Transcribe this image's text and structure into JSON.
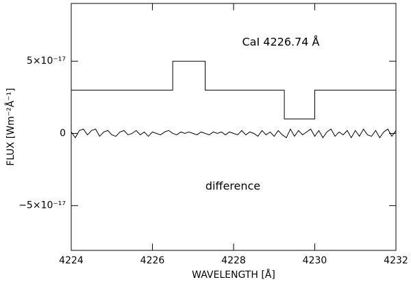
{
  "chart_data": {
    "type": "line",
    "xlabel": "WAVELENGTH [Å]",
    "ylabel": "FLUX [Wm⁻²Å⁻¹]",
    "annotations": [
      "CaI 4226.74 Å",
      "difference"
    ],
    "xlim": [
      4224,
      4232
    ],
    "xticks": [
      4224,
      4226,
      4228,
      4230,
      4232
    ],
    "ylim": [
      -8.1e-17,
      9e-17
    ],
    "yticks": [
      {
        "value": -5e-17,
        "label": "−5×10⁻¹⁷"
      },
      0,
      {
        "value": 5e-17,
        "label": "5×10⁻¹⁷"
      }
    ],
    "color": "#000000",
    "series": [
      {
        "x": [
          4224,
          4226.5,
          4226.5,
          4227.3,
          4227.3,
          4229.25,
          4229.25,
          4230,
          4230,
          4232
        ],
        "values": [
          3e-17,
          3e-17,
          5e-17,
          5e-17,
          3e-17,
          3e-17,
          1e-17,
          1e-17,
          3e-17,
          3e-17
        ]
      },
      {
        "x": [
          4224,
          4224.1,
          4224.2,
          4224.3,
          4224.4,
          4224.5,
          4224.6,
          4224.7,
          4224.8,
          4224.9,
          4225,
          4225.1,
          4225.2,
          4225.3,
          4225.4,
          4225.5,
          4225.6,
          4225.7,
          4225.8,
          4225.9,
          4226,
          4226.1,
          4226.2,
          4226.3,
          4226.4,
          4226.5,
          4226.6,
          4226.7,
          4226.8,
          4226.9,
          4227,
          4227.1,
          4227.2,
          4227.3,
          4227.4,
          4227.5,
          4227.6,
          4227.7,
          4227.8,
          4227.9,
          4228,
          4228.1,
          4228.2,
          4228.3,
          4228.4,
          4228.5,
          4228.6,
          4228.7,
          4228.8,
          4228.9,
          4229,
          4229.1,
          4229.2,
          4229.3,
          4229.4,
          4229.5,
          4229.6,
          4229.7,
          4229.8,
          4229.9,
          4230,
          4230.1,
          4230.2,
          4230.3,
          4230.4,
          4230.5,
          4230.6,
          4230.7,
          4230.8,
          4230.9,
          4231,
          4231.1,
          4231.2,
          4231.3,
          4231.4,
          4231.5,
          4231.6,
          4231.7,
          4231.8,
          4231.9,
          4232
        ],
        "values": [
          1e-18,
          -3e-18,
          2e-18,
          3e-18,
          -1e-18,
          2e-18,
          3e-18,
          -2e-18,
          1e-18,
          2e-18,
          -1e-18,
          -2e-18,
          1e-18,
          2e-18,
          -1e-18,
          0,
          2e-18,
          -1e-18,
          1e-18,
          -2e-18,
          1e-18,
          0,
          -1e-18,
          1e-18,
          2e-18,
          0,
          -1e-18,
          1e-18,
          0,
          1e-18,
          0,
          -1e-18,
          1e-18,
          0,
          -1e-18,
          1e-18,
          0,
          1e-18,
          -1e-18,
          1e-18,
          0,
          -1e-18,
          2e-18,
          -1e-18,
          1e-18,
          0,
          -2e-18,
          2e-18,
          -1e-18,
          1e-18,
          -2e-18,
          2e-18,
          -1e-18,
          -3e-18,
          3e-18,
          -2e-18,
          2e-18,
          -1e-18,
          1e-18,
          3e-18,
          -2e-18,
          2e-18,
          -3e-18,
          1e-18,
          3e-18,
          -2e-18,
          1e-18,
          -1e-18,
          2e-18,
          -3e-18,
          2e-18,
          -2e-18,
          3e-18,
          -1e-18,
          -2e-18,
          2e-18,
          -3e-18,
          1e-18,
          3e-18,
          -2e-18,
          2e-18
        ]
      }
    ]
  }
}
